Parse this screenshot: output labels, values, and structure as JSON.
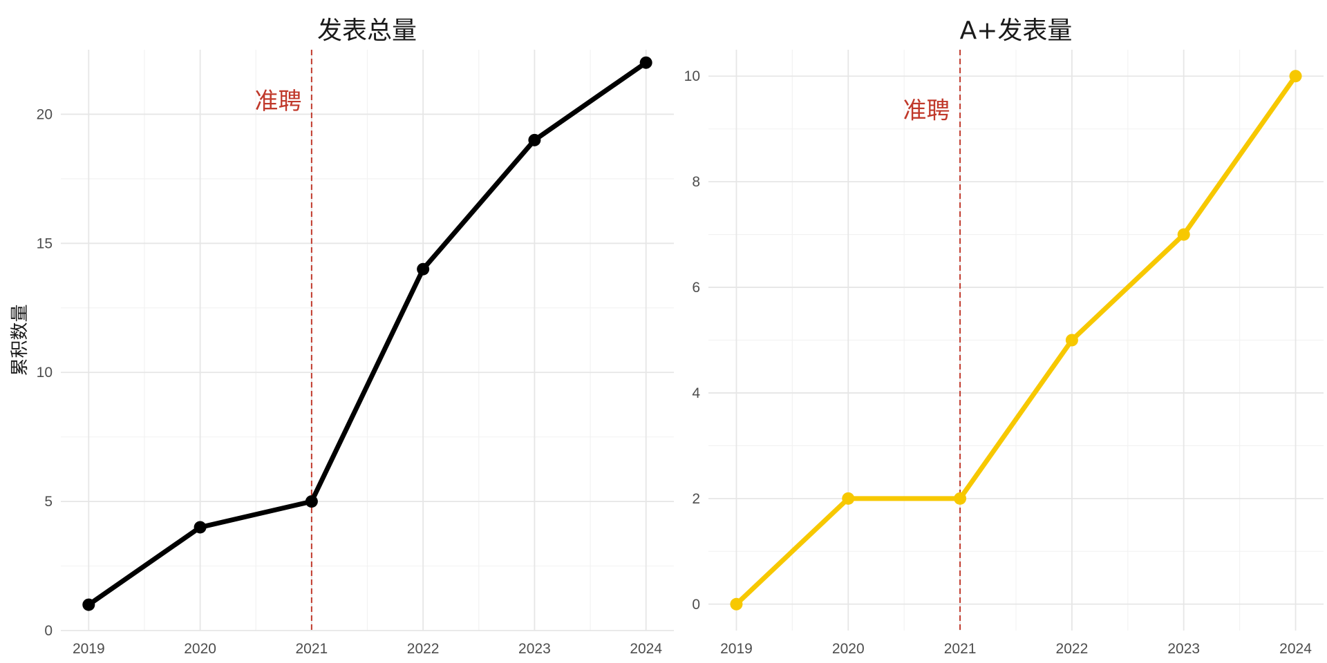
{
  "chart_data": [
    {
      "type": "line",
      "title": "发表总量",
      "xlabel": "",
      "ylabel": "累积数量",
      "x": [
        2019,
        2020,
        2021,
        2022,
        2023,
        2024
      ],
      "series": [
        {
          "values": [
            1,
            4,
            5,
            14,
            19,
            22
          ],
          "color": "#000000"
        }
      ],
      "xlim": [
        2018.75,
        2024.25
      ],
      "ylim": [
        0,
        22.5
      ],
      "yticks": [
        0,
        5,
        10,
        15,
        20
      ],
      "grid": true,
      "vline": {
        "x": 2021,
        "color": "#c0392b"
      },
      "annotation": {
        "text": "准聘",
        "x": 2020.7,
        "y": 20.2,
        "color": "#c0392b"
      }
    },
    {
      "type": "line",
      "title": "A+发表量",
      "xlabel": "",
      "ylabel": "",
      "x": [
        2019,
        2020,
        2021,
        2022,
        2023,
        2024
      ],
      "series": [
        {
          "values": [
            0,
            2,
            2,
            5,
            7,
            10
          ],
          "color": "#f7c800"
        }
      ],
      "xlim": [
        2018.75,
        2024.25
      ],
      "ylim": [
        -0.5,
        10.5
      ],
      "yticks": [
        0,
        2,
        4,
        6,
        8,
        10
      ],
      "grid": true,
      "vline": {
        "x": 2021,
        "color": "#c0392b"
      },
      "annotation": {
        "text": "准聘",
        "x": 2020.7,
        "y": 9.2,
        "color": "#c0392b"
      }
    }
  ]
}
